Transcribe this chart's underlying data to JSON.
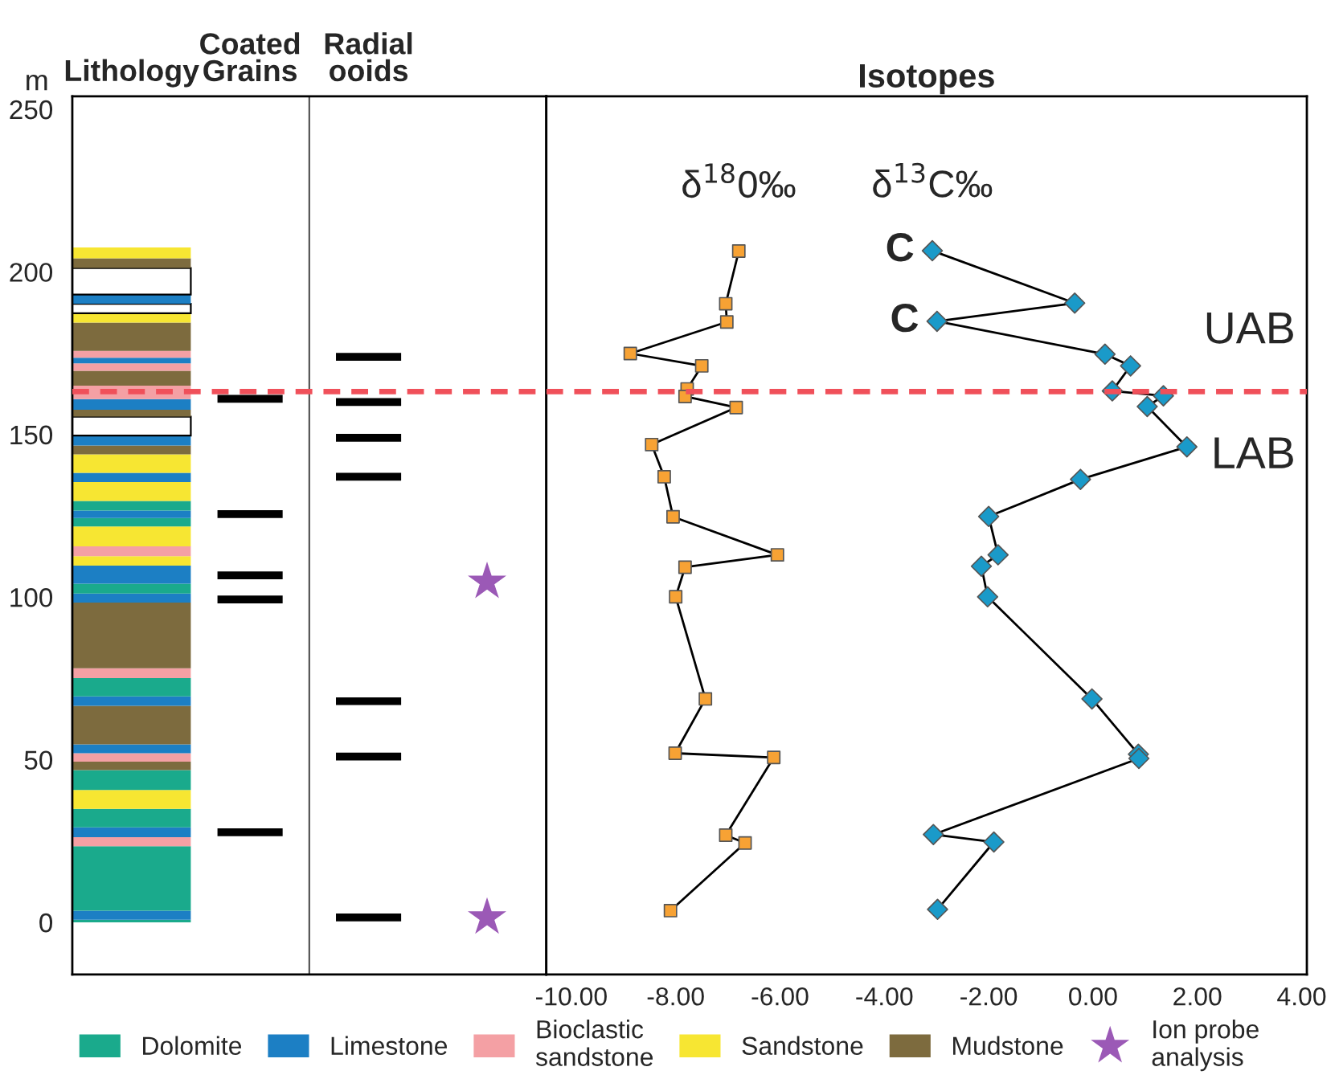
{
  "chart_data": [
    {
      "type": "bar",
      "ylabel": "m",
      "categories": [
        "Lithology",
        "Coated\nGrains",
        "Radial\nooids",
        null
      ],
      "ylim": [
        -16,
        254
      ],
      "yticks": [
        0,
        50,
        100,
        150,
        200,
        250
      ],
      "legend": "bottom",
      "ref_lines": [
        {
          "axis": "y",
          "value": 163.2,
          "color": "#f0505a",
          "line_style": "dashed"
        }
      ],
      "series": [
        {
          "name": "Dolomite",
          "color": "#1aaa8c",
          "base": [
            0,
            null,
            null,
            null
          ],
          "values": [
            0.8,
            null,
            null,
            null
          ]
        },
        {
          "name": "Limestone",
          "color": "#1c7fc4",
          "base": [
            0.8,
            null,
            null,
            null
          ],
          "values": [
            2.8,
            null,
            null,
            null
          ]
        },
        {
          "color": "#1aaa8c",
          "base": [
            3.6,
            null,
            null,
            null
          ],
          "values": [
            19.8,
            null,
            null,
            null
          ]
        },
        {
          "name": "Bioclastic\nsandstone",
          "color": "#f4a0a4",
          "base": [
            23.4,
            null,
            null,
            null
          ],
          "values": [
            2.8,
            null,
            null,
            null
          ]
        },
        {
          "color": "#1c7fc4",
          "base": [
            26.2,
            null,
            null,
            null
          ],
          "values": [
            3.0,
            null,
            null,
            null
          ]
        },
        {
          "color": "#1aaa8c",
          "base": [
            29.2,
            null,
            null,
            null
          ],
          "values": [
            5.7,
            null,
            null,
            null
          ]
        },
        {
          "name": "Sandstone",
          "color": "#f7e632",
          "base": [
            34.9,
            null,
            null,
            null
          ],
          "values": [
            5.8,
            null,
            null,
            null
          ]
        },
        {
          "color": "#1aaa8c",
          "base": [
            40.7,
            null,
            null,
            null
          ],
          "values": [
            6.1,
            null,
            null,
            null
          ]
        },
        {
          "name": "Mudstone",
          "color": "#7d6b3e",
          "base": [
            46.8,
            null,
            null,
            null
          ],
          "values": [
            2.6,
            null,
            null,
            null
          ]
        },
        {
          "color": "#f4a0a4",
          "base": [
            49.4,
            null,
            null,
            null
          ],
          "values": [
            2.6,
            null,
            null,
            null
          ]
        },
        {
          "color": "#1c7fc4",
          "base": [
            52.0,
            null,
            null,
            null
          ],
          "values": [
            2.7,
            null,
            null,
            null
          ]
        },
        {
          "color": "#7d6b3e",
          "base": [
            54.7,
            null,
            null,
            null
          ],
          "values": [
            11.9,
            null,
            null,
            null
          ]
        },
        {
          "color": "#1c7fc4",
          "base": [
            66.6,
            null,
            null,
            null
          ],
          "values": [
            2.9,
            null,
            null,
            null
          ]
        },
        {
          "color": "#1aaa8c",
          "base": [
            69.5,
            null,
            null,
            null
          ],
          "values": [
            5.6,
            null,
            null,
            null
          ]
        },
        {
          "color": "#f4a0a4",
          "base": [
            75.1,
            null,
            null,
            null
          ],
          "values": [
            3.0,
            null,
            null,
            null
          ]
        },
        {
          "color": "#7d6b3e",
          "base": [
            78.1,
            null,
            null,
            null
          ],
          "values": [
            20.2,
            null,
            null,
            null
          ]
        },
        {
          "color": "#1c7fc4",
          "base": [
            98.3,
            null,
            null,
            null
          ],
          "values": [
            2.8,
            null,
            null,
            null
          ]
        },
        {
          "color": "#1aaa8c",
          "base": [
            101.1,
            null,
            null,
            null
          ],
          "values": [
            3.0,
            null,
            null,
            null
          ]
        },
        {
          "color": "#1c7fc4",
          "base": [
            104.1,
            null,
            null,
            null
          ],
          "values": [
            5.6,
            null,
            null,
            null
          ]
        },
        {
          "color": "#f7e632",
          "base": [
            109.7,
            null,
            null,
            null
          ],
          "values": [
            2.9,
            null,
            null,
            null
          ]
        },
        {
          "color": "#f4a0a4",
          "base": [
            112.6,
            null,
            null,
            null
          ],
          "values": [
            3.0,
            null,
            null,
            null
          ]
        },
        {
          "color": "#f7e632",
          "base": [
            115.6,
            null,
            null,
            null
          ],
          "values": [
            6.1,
            null,
            null,
            null
          ]
        },
        {
          "color": "#1aaa8c",
          "base": [
            121.7,
            null,
            null,
            null
          ],
          "values": [
            2.6,
            null,
            null,
            null
          ]
        },
        {
          "color": "#1c7fc4",
          "base": [
            124.3,
            null,
            null,
            null
          ],
          "values": [
            2.3,
            null,
            null,
            null
          ]
        },
        {
          "color": "#1aaa8c",
          "base": [
            126.6,
            null,
            null,
            null
          ],
          "values": [
            3.0,
            null,
            null,
            null
          ]
        },
        {
          "color": "#f7e632",
          "base": [
            129.6,
            null,
            null,
            null
          ],
          "values": [
            5.8,
            null,
            null,
            null
          ]
        },
        {
          "color": "#1c7fc4",
          "base": [
            135.4,
            null,
            null,
            null
          ],
          "values": [
            2.8,
            null,
            null,
            null
          ]
        },
        {
          "color": "#f7e632",
          "base": [
            138.2,
            null,
            null,
            null
          ],
          "values": [
            5.7,
            null,
            null,
            null
          ]
        },
        {
          "color": "#7d6b3e",
          "base": [
            143.9,
            null,
            null,
            null
          ],
          "values": [
            2.7,
            null,
            null,
            null
          ]
        },
        {
          "color": "#1c7fc4",
          "base": [
            146.6,
            null,
            null,
            null
          ],
          "values": [
            3.1,
            null,
            null,
            null
          ]
        },
        {
          "color": "#ffffff",
          "base": [
            149.7,
            null,
            null,
            null
          ],
          "values": [
            5.8,
            null,
            null,
            null
          ]
        },
        {
          "color": "#7d6b3e",
          "base": [
            155.5,
            null,
            null,
            null
          ],
          "values": [
            2.1,
            null,
            null,
            null
          ]
        },
        {
          "color": "#1c7fc4",
          "base": [
            157.6,
            null,
            null,
            null
          ],
          "values": [
            3.3,
            null,
            null,
            null
          ]
        },
        {
          "color": "#f4a0a4",
          "base": [
            160.9,
            null,
            null,
            null
          ],
          "values": [
            4.1,
            null,
            null,
            null
          ]
        },
        {
          "color": "#7d6b3e",
          "base": [
            165.0,
            null,
            null,
            null
          ],
          "values": [
            4.6,
            null,
            null,
            null
          ]
        },
        {
          "color": "#f4a0a4",
          "base": [
            169.6,
            null,
            null,
            null
          ],
          "values": [
            2.3,
            null,
            null,
            null
          ]
        },
        {
          "color": "#1c7fc4",
          "base": [
            171.9,
            null,
            null,
            null
          ],
          "values": [
            1.7,
            null,
            null,
            null
          ]
        },
        {
          "color": "#f4a0a4",
          "base": [
            173.6,
            null,
            null,
            null
          ],
          "values": [
            2.1,
            null,
            null,
            null
          ]
        },
        {
          "color": "#7d6b3e",
          "base": [
            175.7,
            null,
            null,
            null
          ],
          "values": [
            8.7,
            null,
            null,
            null
          ]
        },
        {
          "color": "#f7e632",
          "base": [
            184.4,
            null,
            null,
            null
          ],
          "values": [
            2.9,
            null,
            null,
            null
          ]
        },
        {
          "color": "#ffffff",
          "base": [
            187.3,
            null,
            null,
            null
          ],
          "values": [
            2.9,
            null,
            null,
            null
          ]
        },
        {
          "color": "#1c7fc4",
          "base": [
            190.2,
            null,
            null,
            null
          ],
          "values": [
            2.8,
            null,
            null,
            null
          ]
        },
        {
          "color": "#ffffff",
          "base": [
            193.0,
            null,
            null,
            null
          ],
          "values": [
            8.2,
            null,
            null,
            null
          ]
        },
        {
          "color": "#7d6b3e",
          "base": [
            201.2,
            null,
            null,
            null
          ],
          "values": [
            3.0,
            null,
            null,
            null
          ]
        },
        {
          "color": "#f7e632",
          "base": [
            204.2,
            null,
            null,
            null
          ],
          "values": [
            3.3,
            null,
            null,
            null
          ]
        },
        {
          "color": "#000000",
          "base": [
            null,
            159.8,
            172.7,
            null
          ],
          "values": [
            null,
            2.4,
            2.4,
            null
          ]
        },
        {
          "color": "#000000",
          "base": [
            null,
            124.3,
            158.8,
            null
          ],
          "values": [
            null,
            2.4,
            2.4,
            null
          ]
        },
        {
          "color": "#000000",
          "base": [
            null,
            105.5,
            147.8,
            null
          ],
          "values": [
            null,
            2.4,
            2.4,
            null
          ]
        },
        {
          "color": "#000000",
          "base": [
            null,
            98.1,
            135.8,
            null
          ],
          "values": [
            null,
            2.4,
            2.4,
            null
          ]
        },
        {
          "color": "#000000",
          "base": [
            null,
            26.5,
            66.8,
            null
          ],
          "values": [
            null,
            2.4,
            2.4,
            null
          ]
        },
        {
          "color": "#000000",
          "base": [
            null,
            null,
            49.8,
            null
          ],
          "values": [
            null,
            null,
            2.4,
            null
          ]
        },
        {
          "color": "#000000",
          "base": [
            null,
            null,
            0.3,
            null
          ],
          "values": [
            null,
            null,
            2.4,
            null
          ]
        },
        {
          "type": "scatter",
          "name": "Ion probe\nanalysis",
          "color": "#9b59b6",
          "marker": "star",
          "values": [
            null,
            null,
            null,
            104.7
          ]
        },
        {
          "type": "scatter",
          "color": "#9b59b6",
          "marker": "star",
          "values": [
            null,
            null,
            null,
            1.5
          ]
        }
      ]
    },
    {
      "type": "line",
      "title": "Isotopes",
      "ylim": [
        -16,
        254
      ],
      "xlim": [
        -10.48,
        4.1
      ],
      "tick_labels": "x",
      "line_style": "solid",
      "xticks": [
        {
          "value": -10,
          "label": "-10.00"
        },
        {
          "value": -8,
          "label": "-8.00"
        },
        {
          "value": -6,
          "label": "-6.00"
        },
        {
          "value": -4,
          "label": "-4.00"
        },
        {
          "value": -2,
          "label": "-2.00"
        },
        {
          "value": 0,
          "label": "0.00"
        },
        {
          "value": 2,
          "label": "2.00"
        },
        {
          "value": 4,
          "label": "4.00"
        }
      ],
      "ref_lines": [
        {
          "axis": "y",
          "value": 163.2,
          "color": "#f0505a",
          "line_style": "dashed"
        }
      ],
      "annotations": [
        {
          "text": "C",
          "x": -3.08,
          "y": 206.5
        },
        {
          "text": "C",
          "x": -2.99,
          "y": 184.8
        },
        "UAB",
        "LAB"
      ],
      "series": [
        {
          "name": "δ$^{18}$0‰",
          "color": "#f7a234",
          "marker": "square",
          "x": [
            -6.79,
            -7.04,
            -7.02,
            -8.87,
            -7.5,
            -7.78,
            -7.82,
            -6.84,
            -8.46,
            -8.22,
            -8.05,
            -6.05,
            -7.82,
            -8.0,
            -7.43,
            -8.01,
            -6.12,
            -7.04,
            -6.67,
            -8.1
          ],
          "values": [
            206.4,
            190.2,
            184.6,
            174.9,
            171.1,
            164.0,
            161.7,
            158.3,
            146.9,
            137.0,
            124.7,
            113.0,
            109.2,
            100.1,
            68.7,
            52.0,
            50.7,
            26.8,
            24.4,
            3.6
          ]
        },
        {
          "name": "δ$^{13}$C‰",
          "color": "#1a9ac9",
          "marker": "diamond",
          "x": [
            -3.08,
            -0.35,
            -2.99,
            0.23,
            0.72,
            0.37,
            1.35,
            1.04,
            1.8,
            -0.24,
            -2.0,
            -1.82,
            -2.14,
            -2.02,
            -0.02,
            0.87,
            0.88,
            -3.06,
            -1.9,
            -2.98
          ],
          "values": [
            206.5,
            190.4,
            184.8,
            174.7,
            171.1,
            163.4,
            161.9,
            158.6,
            146.2,
            136.2,
            124.8,
            113.0,
            109.5,
            100.1,
            68.7,
            51.7,
            50.4,
            27.0,
            24.7,
            4.0
          ]
        }
      ]
    }
  ]
}
